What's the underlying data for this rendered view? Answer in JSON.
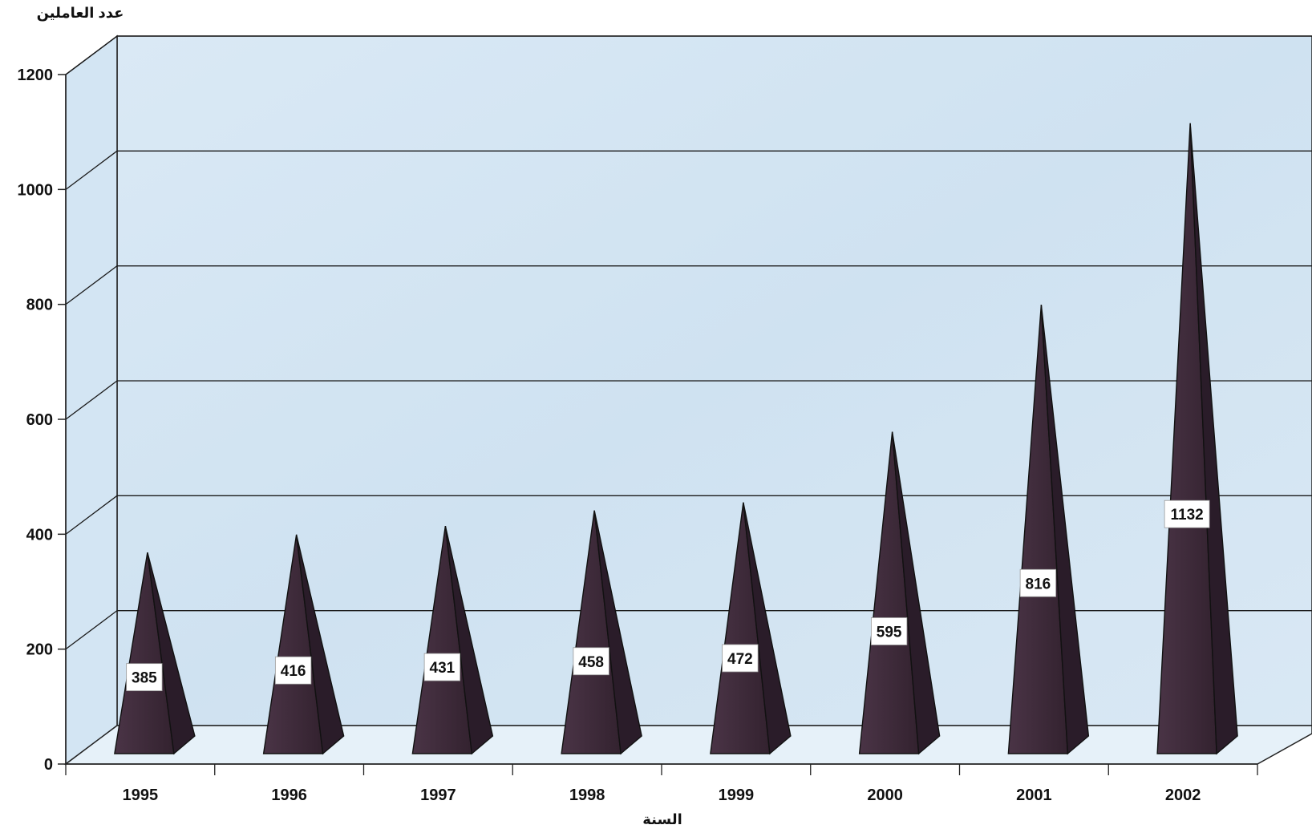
{
  "chart_data": {
    "type": "bar",
    "bar_shape": "pyramid-3d",
    "title": "",
    "ylabel": "عدد العاملين",
    "xlabel": "السنة",
    "categories": [
      "1995",
      "1996",
      "1997",
      "1998",
      "1999",
      "2000",
      "2001",
      "2002"
    ],
    "values": [
      385,
      416,
      431,
      458,
      472,
      595,
      816,
      1132
    ],
    "data_labels": [
      "385",
      "416",
      "431",
      "458",
      "472",
      "595",
      "816",
      "1132"
    ],
    "ylim": [
      0,
      1200
    ],
    "yticks": [
      0,
      200,
      400,
      600,
      800,
      1000,
      1200
    ],
    "ytick_labels": [
      "0",
      "200",
      "400",
      "600",
      "800",
      "1000",
      "1200"
    ],
    "grid": true,
    "legend": "none",
    "colors": {
      "wall": "#d3e5f3",
      "floor": "#e6f1f9",
      "bar_front": "#3d2a3a",
      "bar_side": "#2a1c29",
      "gridline": "#1a1a1a"
    }
  }
}
